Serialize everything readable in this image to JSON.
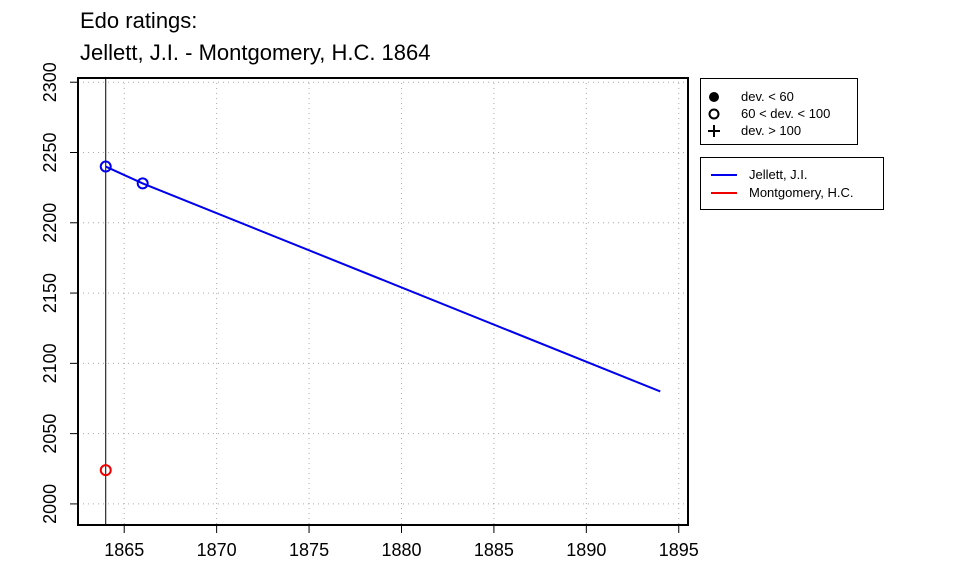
{
  "chart_data": {
    "type": "line",
    "title_lines": [
      "Edo ratings:",
      "Jellett, J.I. - Montgomery, H.C. 1864"
    ],
    "xlabel": "",
    "ylabel": "",
    "xlim": [
      1862.5,
      1895.5
    ],
    "ylim": [
      1985,
      2303
    ],
    "x_ticks": [
      1865,
      1870,
      1875,
      1880,
      1885,
      1890,
      1895
    ],
    "y_ticks": [
      2000,
      2050,
      2100,
      2150,
      2200,
      2250,
      2300
    ],
    "grid": true,
    "vline_x": 1864,
    "series": [
      {
        "name": "Jellett, J.I.",
        "color": "#0000ee",
        "line": [
          [
            1864,
            2240
          ],
          [
            1866,
            2228
          ],
          [
            1894,
            2080
          ]
        ],
        "points": [
          [
            1864,
            2240,
            "open"
          ],
          [
            1866,
            2228,
            "open"
          ]
        ]
      },
      {
        "name": "Montgomery, H.C.",
        "color": "#ee0000",
        "line": [],
        "points": [
          [
            1864,
            2024,
            "open"
          ]
        ]
      }
    ],
    "legend_deviation": {
      "placement": "top-right outside",
      "items": [
        {
          "symbol": "filled-circle",
          "label": "dev. < 60"
        },
        {
          "symbol": "open-circle",
          "label": "60 < dev. < 100"
        },
        {
          "symbol": "plus",
          "label": "dev. > 100"
        }
      ]
    },
    "legend_series": {
      "placement": "right outside",
      "items": [
        {
          "label": "Jellett, J.I.",
          "color": "#0000ee"
        },
        {
          "label": "Montgomery, H.C.",
          "color": "#ee0000"
        }
      ]
    }
  }
}
